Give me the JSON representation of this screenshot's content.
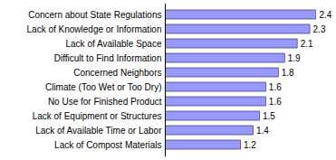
{
  "chart_data": {
    "type": "bar",
    "orientation": "horizontal",
    "categories": [
      "Concern about State Regulations",
      "Lack of Knowledge or Information",
      "Lack of Available Space",
      "Difficult to Find Information",
      "Concerned Neighbors",
      "Climate (Too Wet or Too Dry)",
      "No Use for Finished Product",
      "Lack of Equipment or Structures",
      "Lack of Available Time or Labor",
      "Lack of Compost Materials"
    ],
    "values": [
      2.4,
      2.3,
      2.1,
      1.9,
      1.8,
      1.6,
      1.6,
      1.5,
      1.4,
      1.2
    ],
    "color": "#9999ff",
    "xlim": [
      0,
      2.4
    ],
    "xticks": [],
    "grid": false,
    "data_labels": true,
    "tick_labels": "y"
  }
}
